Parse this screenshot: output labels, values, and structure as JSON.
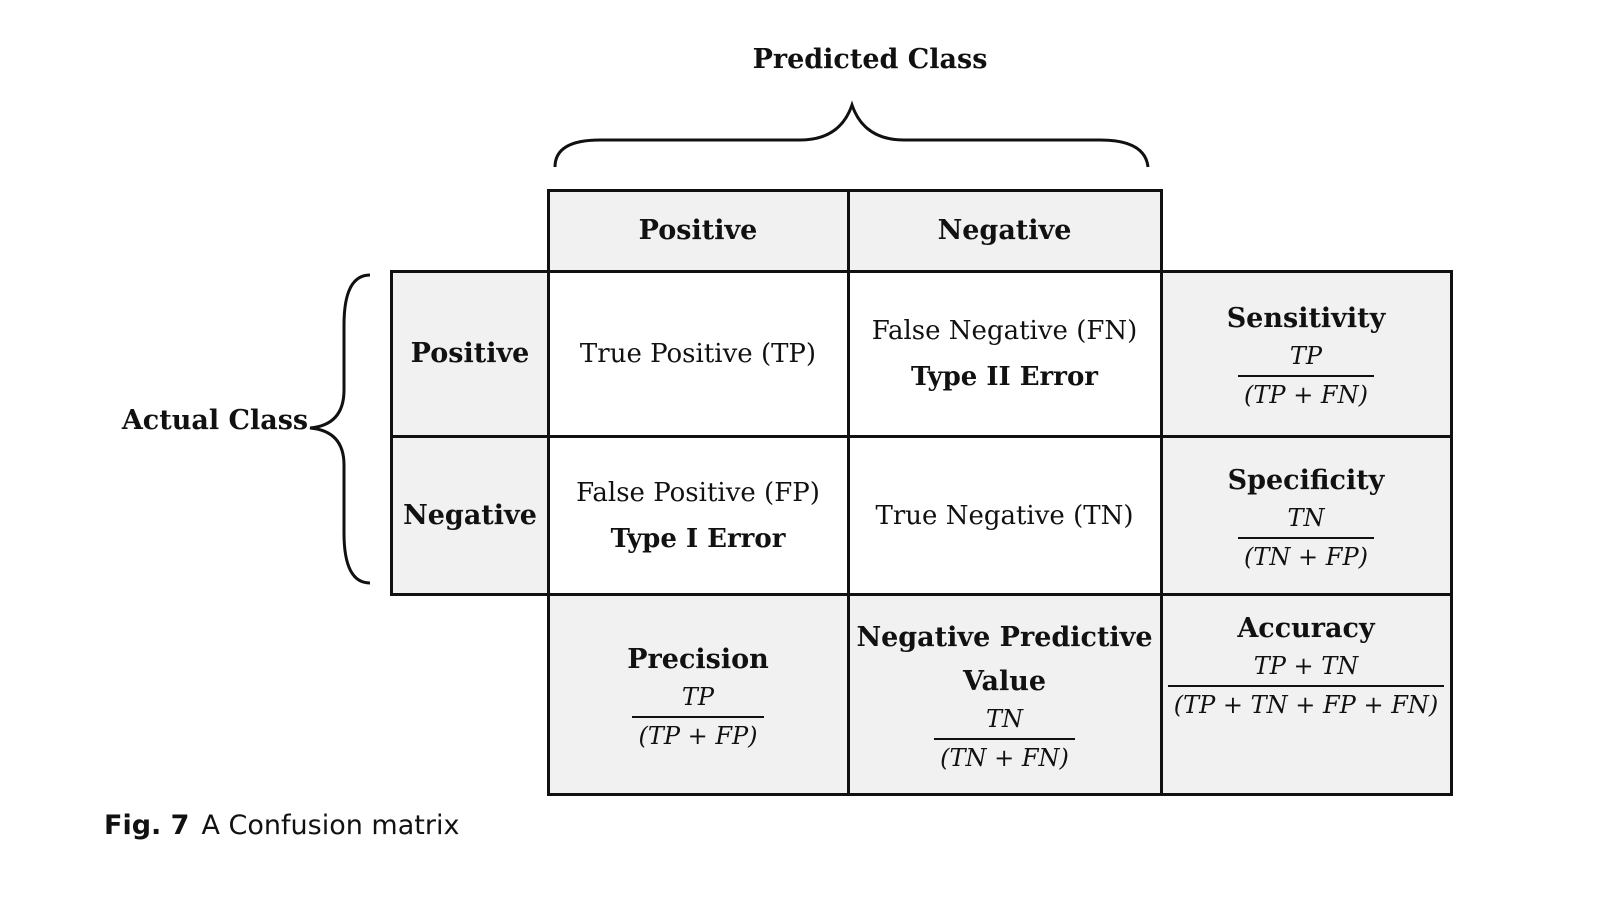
{
  "axis": {
    "predicted_label": "Predicted Class",
    "actual_label": "Actual Class"
  },
  "predicted_headers": [
    "Positive",
    "Negative"
  ],
  "actual_headers": [
    "Positive",
    "Negative"
  ],
  "cells": {
    "tp": "True Positive (TP)",
    "fn_line1": "False Negative (FN)",
    "fn_line2": "Type II Error",
    "fp_line1": "False Positive (FP)",
    "fp_line2": "Type I Error",
    "tn": "True Negative (TN)"
  },
  "metrics": {
    "sensitivity": {
      "name": "Sensitivity",
      "numerator": "TP",
      "denominator": "(TP + FN)"
    },
    "specificity": {
      "name": "Specificity",
      "numerator": "TN",
      "denominator": "(TN + FP)"
    },
    "precision": {
      "name": "Precision",
      "numerator": "TP",
      "denominator": "(TP + FP)"
    },
    "npv": {
      "name_line1": "Negative Predictive",
      "name_line2": "Value",
      "numerator": "TN",
      "denominator": "(TN + FN)"
    },
    "accuracy": {
      "name": "Accuracy",
      "numerator": "TP + TN",
      "denominator": "(TP + TN + FP + FN)"
    }
  },
  "caption": {
    "label": "Fig. 7",
    "text": "A Confusion matrix"
  }
}
